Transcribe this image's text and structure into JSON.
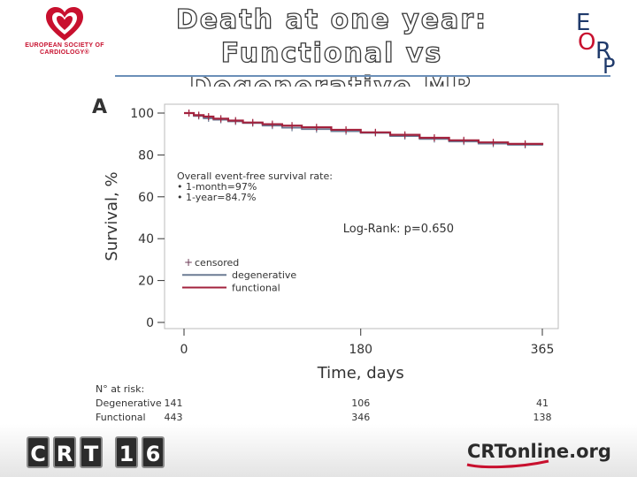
{
  "header": {
    "title_line1": "Death at one year:",
    "title_line2": "Functional vs Degenerative MR",
    "esc_logo_text": "EUROPEAN SOCIETY OF CARDIOLOGY®",
    "eorp_logo_text": "EORP"
  },
  "footer": {
    "crt16_chars": [
      "C",
      "R",
      "T",
      "1",
      "6"
    ],
    "crtonline_text": "CRTonline.org"
  },
  "chart_data": {
    "type": "line",
    "panel_label": "A",
    "title": "",
    "xlabel": "Time, days",
    "ylabel": "Survival, %",
    "xlim": [
      0,
      365
    ],
    "ylim": [
      0,
      100
    ],
    "x_ticks": [
      0,
      180,
      365
    ],
    "y_ticks": [
      0,
      20,
      40,
      60,
      80,
      100
    ],
    "annotation": {
      "heading": "Overall event-free survival rate:",
      "bullets": [
        "• 1-month=97%",
        "• 1-year=84.7%"
      ]
    },
    "logrank": "Log-Rank: p=0.650",
    "legend": {
      "censored_label": "censored",
      "position": "bottom-left"
    },
    "series": [
      {
        "name": "degenerative",
        "color": "#6b7b94",
        "x": [
          0,
          10,
          20,
          30,
          45,
          60,
          80,
          100,
          120,
          150,
          180,
          210,
          240,
          270,
          300,
          330,
          365
        ],
        "y": [
          100,
          98.6,
          97.5,
          96.8,
          96.0,
          95.2,
          94.0,
          93.0,
          92.3,
          91.3,
          90.5,
          89.0,
          87.6,
          86.4,
          85.4,
          84.8,
          84.5
        ]
      },
      {
        "name": "functional",
        "color": "#a3223d",
        "x": [
          0,
          10,
          20,
          30,
          45,
          60,
          80,
          100,
          120,
          150,
          180,
          210,
          240,
          270,
          300,
          330,
          365
        ],
        "y": [
          100,
          99.0,
          98.3,
          97.3,
          96.4,
          95.5,
          94.7,
          94.0,
          93.2,
          92.0,
          90.8,
          89.6,
          88.2,
          87.0,
          86.0,
          85.3,
          84.7
        ]
      }
    ],
    "at_risk": {
      "heading": "N° at risk:",
      "days": [
        0,
        180,
        365
      ],
      "rows": [
        {
          "label": "Degenerative",
          "values": [
            141,
            106,
            41
          ]
        },
        {
          "label": "Functional",
          "values": [
            443,
            346,
            138
          ]
        }
      ]
    }
  }
}
